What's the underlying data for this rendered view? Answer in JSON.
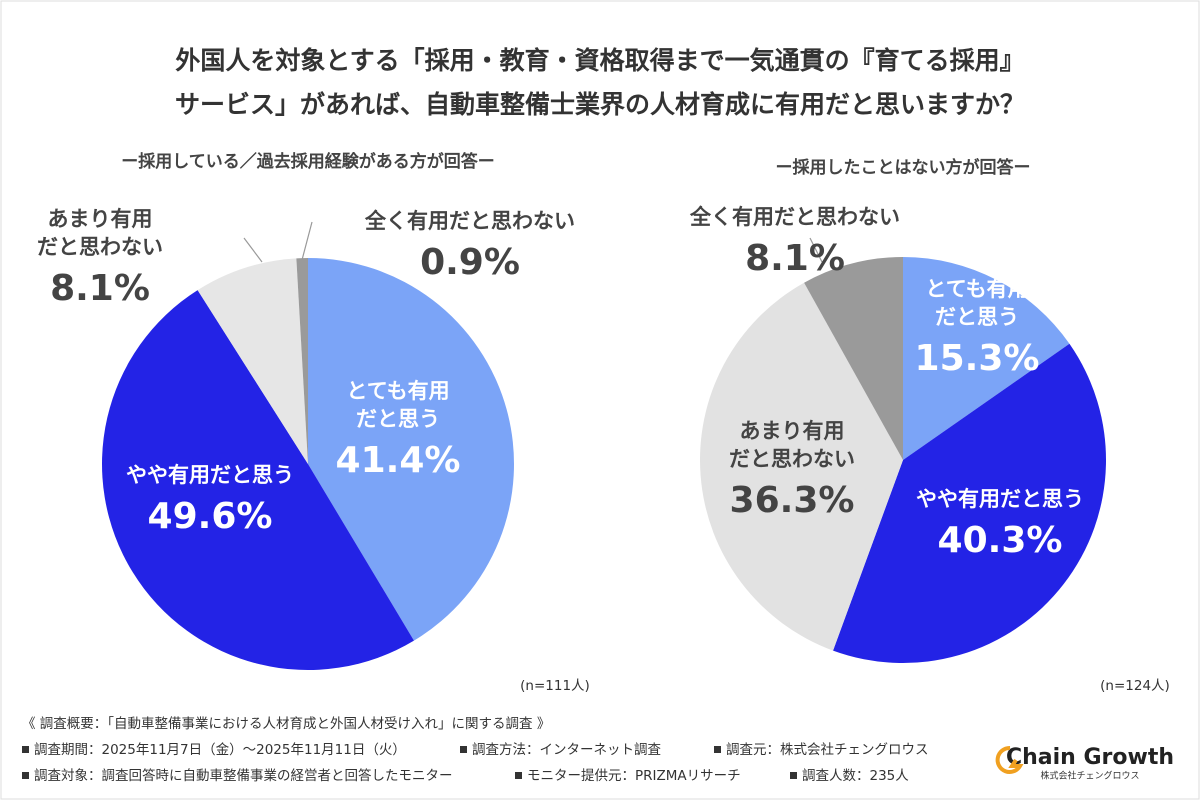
{
  "header": {
    "title": [
      "外国人を対象とする「採用・教育・資格取得まで一気通貫の『育てる採用』",
      "サービス」があれば、自動車整備士業界の人材育成に有用だと思いますか？"
    ]
  },
  "chart_data": [
    {
      "type": "pie",
      "subtitle": "ー採用している／過去採用経験がある方が回答ー",
      "note": "(n=111人)",
      "categories": [
        "とても有用だと思う",
        "やや有用だと思う",
        "あまり有用だと思わない",
        "全く有用だと思わない"
      ],
      "values": [
        41.4,
        49.6,
        8.1,
        0.9
      ],
      "value_labels": [
        "41.4%",
        "49.6%",
        "8.1%",
        "0.9%"
      ],
      "colors": [
        "#7ba4f7",
        "#2323e6",
        "#e6e6e6",
        "#9a9a9a"
      ]
    },
    {
      "type": "pie",
      "subtitle": "ー採用したことはない方が回答ー",
      "note": "(n=124人)",
      "categories": [
        "とても有用だと思う",
        "やや有用だと思う",
        "あまり有用だと思わない",
        "全く有用だと思わない"
      ],
      "values": [
        15.3,
        40.3,
        36.3,
        8.1
      ],
      "value_labels": [
        "15.3%",
        "40.3%",
        "36.3%",
        "8.1%"
      ],
      "colors": [
        "#7ba4f7",
        "#2323e6",
        "#e2e2e2",
        "#9a9a9a"
      ]
    }
  ],
  "footer": {
    "summary": "《 調査概要：「自動車整備事業における人材育成と外国人材受け入れ」に関する調査 》",
    "items": [
      "調査期間：2025年11月7日（金）～2025年11月11日（火）",
      "調査方法：インターネット調査",
      "調査元：株式会社チェングロウス",
      "調査対象：調査回答時に自動車整備事業の経営者と回答したモニター",
      "モニター提供元：PRIZMAリサーチ",
      "調査人数：235人"
    ],
    "logo": "Chain Growth",
    "logo_sub": "株式会社チェングロウス"
  }
}
